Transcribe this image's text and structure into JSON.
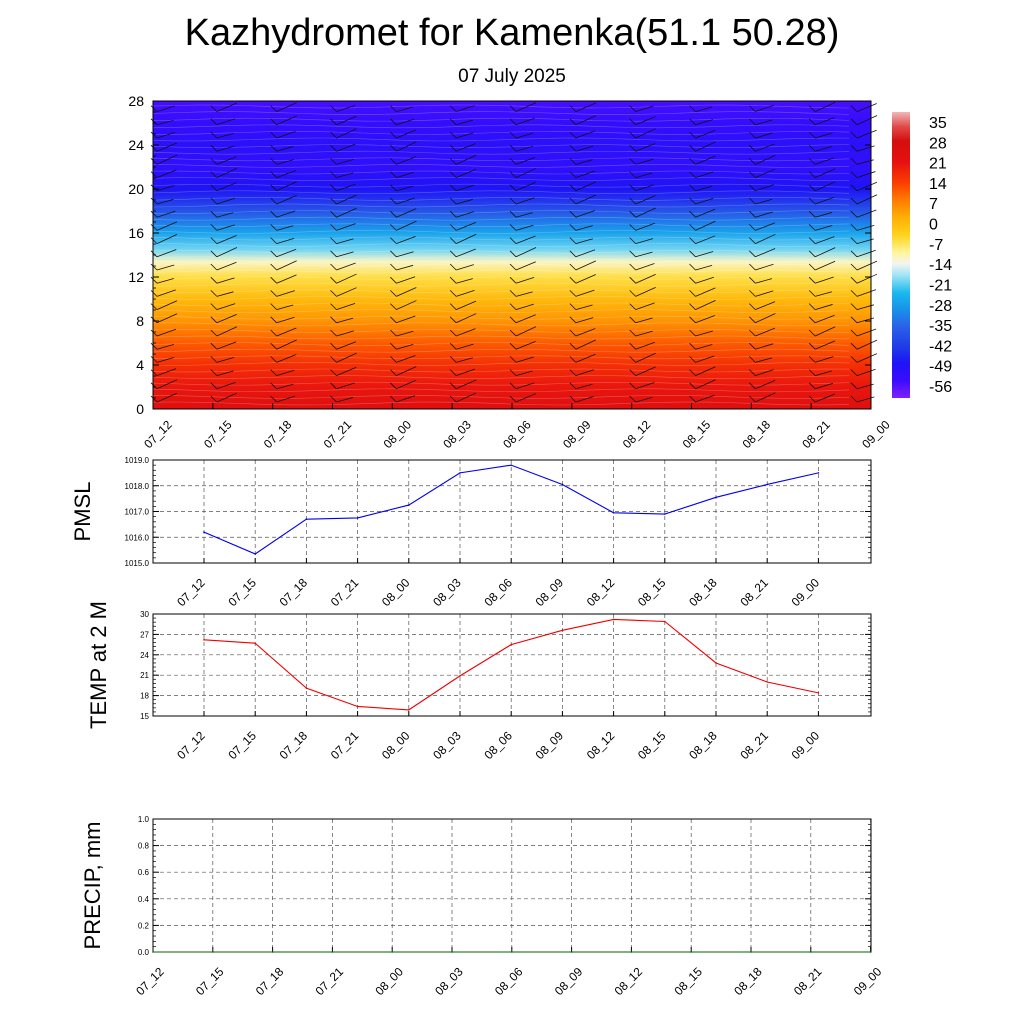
{
  "header": {
    "title": "Kazhydromet for Kamenka(51.1 50.28)",
    "subtitle": "07 July 2025"
  },
  "colors": {
    "pmsl_line": "#0000ee",
    "temp_line": "#ee0000",
    "precip_line": "#006400",
    "grid": "#555555"
  },
  "chart_data": [
    {
      "type": "heatmap",
      "name_hint": "temperature-cross-section",
      "x_ticks": [
        "07_12",
        "07_15",
        "07_18",
        "07_21",
        "08_00",
        "08_03",
        "08_06",
        "08_09",
        "08_12",
        "08_15",
        "08_18",
        "08_21",
        "09_00"
      ],
      "y_ticks": [
        0,
        4,
        8,
        12,
        16,
        20,
        24,
        28
      ],
      "ylim": [
        0,
        28
      ],
      "colorbar_labels": [
        "35",
        "28",
        "21",
        "14",
        "7",
        "0",
        "-7",
        "-14",
        "-21",
        "-28",
        "-35",
        "-42",
        "-49",
        "-56"
      ],
      "colorbar_range": [
        -60,
        38
      ],
      "color_stops": [
        {
          "v": -60,
          "c": "#7f1fff"
        },
        {
          "v": -54,
          "c": "#3a0cff"
        },
        {
          "v": -48,
          "c": "#1e14f5"
        },
        {
          "v": -42,
          "c": "#1f3fe6"
        },
        {
          "v": -36,
          "c": "#2a5ee8"
        },
        {
          "v": -30,
          "c": "#1a8fe8"
        },
        {
          "v": -24,
          "c": "#1ab8ee"
        },
        {
          "v": -18,
          "c": "#9ee4f4"
        },
        {
          "v": -14,
          "c": "#f4f4f2"
        },
        {
          "v": -10,
          "c": "#fff59a"
        },
        {
          "v": -4,
          "c": "#ffd21a"
        },
        {
          "v": 2,
          "c": "#ffae05"
        },
        {
          "v": 8,
          "c": "#ff7a00"
        },
        {
          "v": 14,
          "c": "#fa3c00"
        },
        {
          "v": 21,
          "c": "#e61010"
        },
        {
          "v": 28,
          "c": "#d40e0e"
        },
        {
          "v": 33,
          "c": "#e04a4a"
        },
        {
          "v": 38,
          "c": "#f2b8b8"
        }
      ],
      "temperature_profile": [
        {
          "h": 0,
          "t": 24
        },
        {
          "h": 2,
          "t": 20
        },
        {
          "h": 4,
          "t": 16
        },
        {
          "h": 6,
          "t": 11
        },
        {
          "h": 8,
          "t": 5
        },
        {
          "h": 10,
          "t": 0
        },
        {
          "h": 12,
          "t": -6
        },
        {
          "h": 13.4,
          "t": -12
        },
        {
          "h": 14.5,
          "t": -20
        },
        {
          "h": 16,
          "t": -27
        },
        {
          "h": 18,
          "t": -38
        },
        {
          "h": 20,
          "t": -48
        },
        {
          "h": 22,
          "t": -52
        },
        {
          "h": 24,
          "t": -51
        },
        {
          "h": 26,
          "t": -53
        },
        {
          "h": 28,
          "t": -55
        }
      ]
    },
    {
      "type": "line",
      "ylabel": "PMSL",
      "x": [
        "07_12",
        "07_15",
        "07_18",
        "07_21",
        "08_00",
        "08_03",
        "08_06",
        "08_09",
        "08_12",
        "08_15",
        "08_18",
        "08_21",
        "09_00"
      ],
      "y_ticks": [
        "1015.0",
        "1016.0",
        "1017.0",
        "1018.0",
        "1019.0"
      ],
      "ylim": [
        1015,
        1019
      ],
      "series": [
        {
          "values": [
            1016.2,
            1015.35,
            1016.7,
            1016.75,
            1017.25,
            1018.5,
            1018.8,
            1018.05,
            1016.95,
            1016.9,
            1017.55,
            1018.05,
            1018.5
          ]
        }
      ],
      "grid": true
    },
    {
      "type": "line",
      "ylabel": "TEMP at 2 M",
      "x": [
        "07_12",
        "07_15",
        "07_18",
        "07_21",
        "08_00",
        "08_03",
        "08_06",
        "08_09",
        "08_12",
        "08_15",
        "08_18",
        "08_21",
        "09_00"
      ],
      "y_ticks": [
        "15",
        "18",
        "21",
        "24",
        "27",
        "30"
      ],
      "ylim": [
        15,
        30
      ],
      "series": [
        {
          "values": [
            26.2,
            25.7,
            19.1,
            16.4,
            15.9,
            20.9,
            25.5,
            27.6,
            29.2,
            28.9,
            22.8,
            20.0,
            18.4
          ]
        }
      ],
      "grid": true
    },
    {
      "type": "line",
      "ylabel": "PRECIP, mm",
      "x": [
        "07_12",
        "07_15",
        "07_18",
        "07_21",
        "08_00",
        "08_03",
        "08_06",
        "08_09",
        "08_12",
        "08_15",
        "08_18",
        "08_21",
        "09_00"
      ],
      "y_ticks": [
        "0.0",
        "0.2",
        "0.4",
        "0.6",
        "0.8",
        "1.0"
      ],
      "ylim": [
        0,
        1
      ],
      "series": [
        {
          "values": [
            0,
            0,
            0,
            0,
            0,
            0,
            0,
            0,
            0,
            0,
            0,
            0,
            0
          ]
        }
      ],
      "grid": true
    }
  ]
}
